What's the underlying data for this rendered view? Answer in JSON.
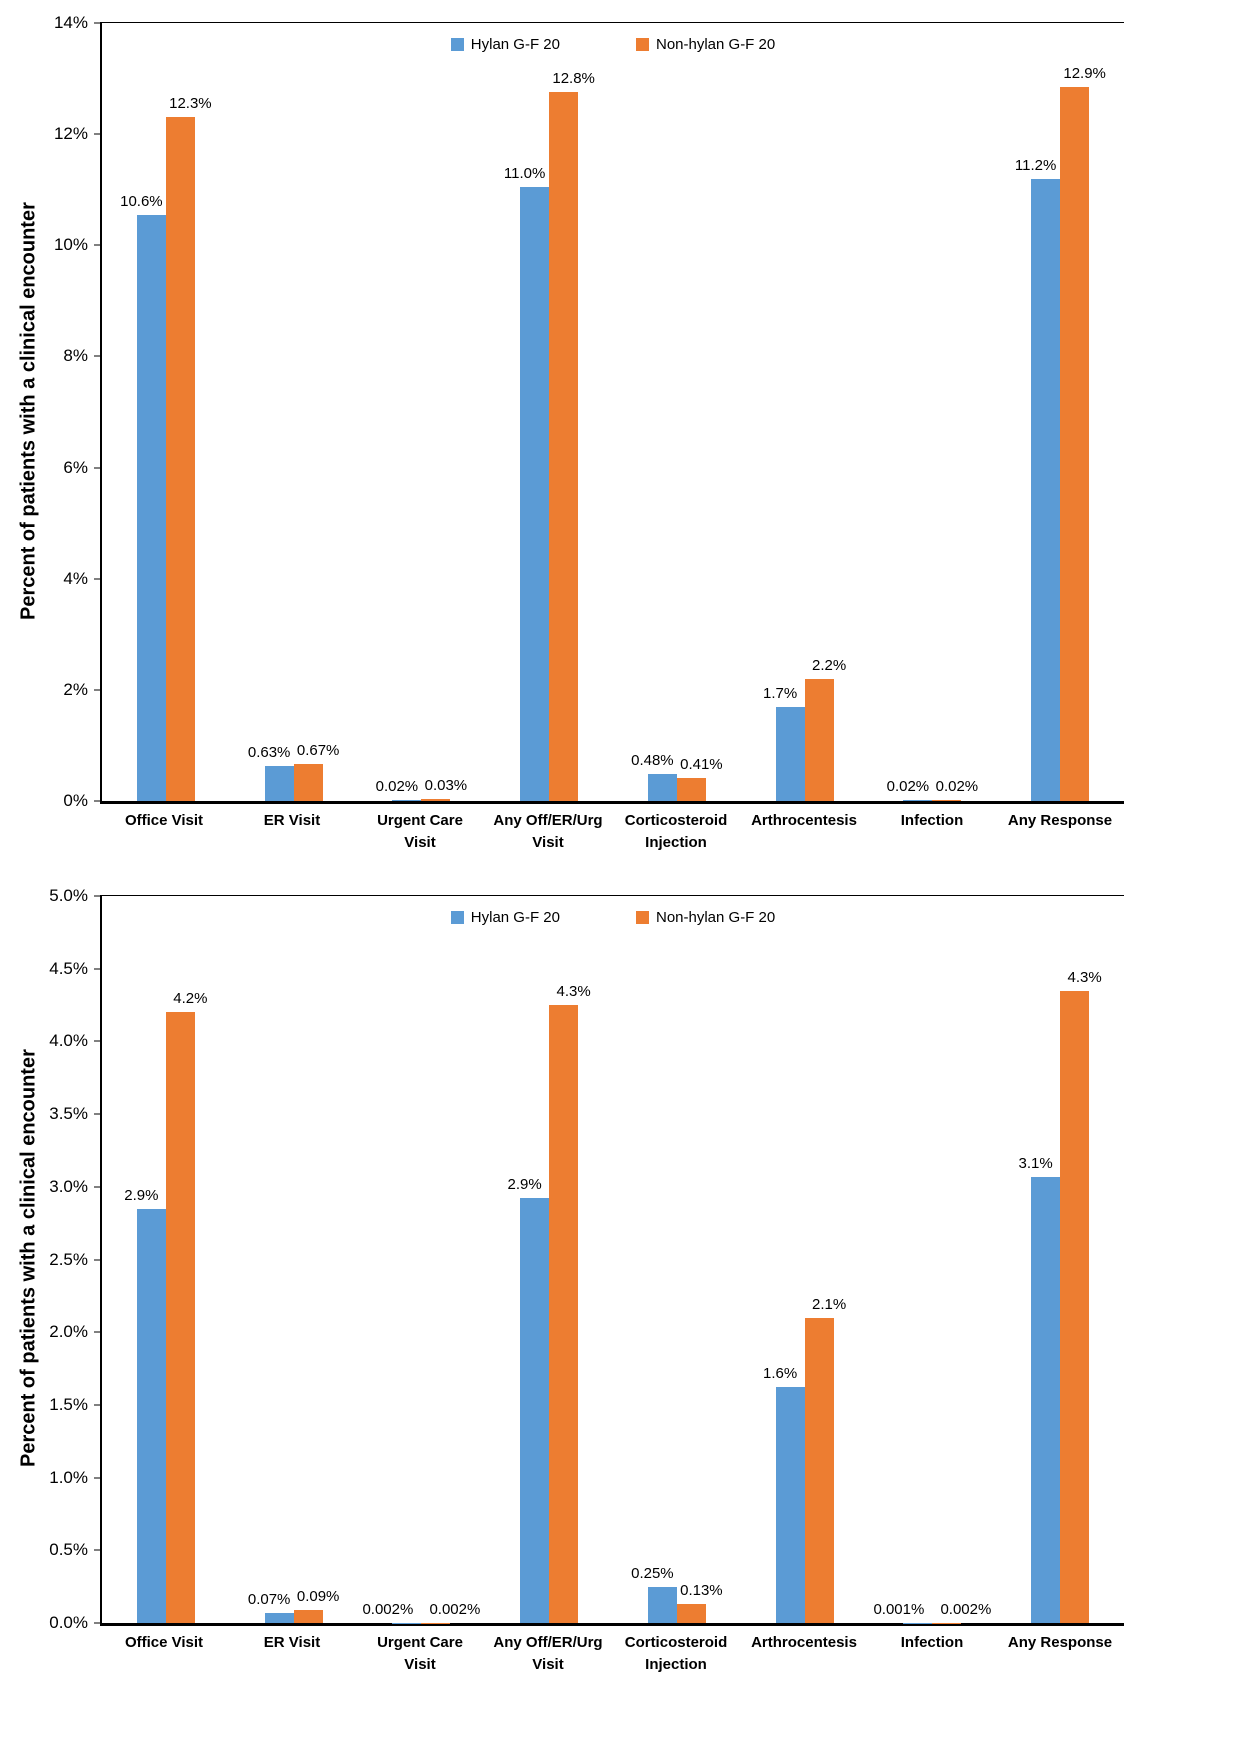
{
  "chart_data": [
    {
      "type": "bar",
      "panel": "top",
      "ylabel": "Percent of patients with a clinical encounter",
      "ylim": [
        0,
        14
      ],
      "ytick_labels": [
        "0%",
        "2%",
        "4%",
        "6%",
        "8%",
        "10%",
        "12%",
        "14%"
      ],
      "grid": false,
      "legend_position": "top-center",
      "categories": [
        "Office Visit",
        "ER Visit",
        "Urgent Care Visit",
        "Any Off/ER/Urg Visit",
        "Corticosteroid Injection",
        "Arthrocentesis",
        "Infection",
        "Any Response"
      ],
      "series": [
        {
          "name": "Hylan G-F 20",
          "color": "#5B9BD5",
          "values": [
            10.55,
            0.63,
            0.02,
            11.05,
            0.48,
            1.7,
            0.02,
            11.2
          ],
          "labels": [
            "10.6%",
            "0.63%",
            "0.02%",
            "11.0%",
            "0.48%",
            "1.7%",
            "0.02%",
            "11.2%"
          ]
        },
        {
          "name": "Non-hylan G-F 20",
          "color": "#ED7D31",
          "values": [
            12.3,
            0.67,
            0.03,
            12.75,
            0.41,
            2.2,
            0.02,
            12.85
          ],
          "labels": [
            "12.3%",
            "0.67%",
            "0.03%",
            "12.8%",
            "0.41%",
            "2.2%",
            "0.02%",
            "12.9%"
          ]
        }
      ]
    },
    {
      "type": "bar",
      "panel": "bottom",
      "ylabel": "Percent of patients with a clinical encounter",
      "ylim": [
        0,
        5
      ],
      "ytick_labels": [
        "0.0%",
        "0.5%",
        "1.0%",
        "1.5%",
        "2.0%",
        "2.5%",
        "3.0%",
        "3.5%",
        "4.0%",
        "4.5%",
        "5.0%"
      ],
      "grid": false,
      "legend_position": "top-center",
      "categories": [
        "Office Visit",
        "ER Visit",
        "Urgent Care Visit",
        "Any Off/ER/Urg Visit",
        "Corticosteroid Injection",
        "Arthrocentesis",
        "Infection",
        "Any Response"
      ],
      "series": [
        {
          "name": "Hylan G-F 20",
          "color": "#5B9BD5",
          "values": [
            2.85,
            0.07,
            0.002,
            2.92,
            0.25,
            1.62,
            0.001,
            3.07
          ],
          "labels": [
            "2.9%",
            "0.07%",
            "0.002%",
            "2.9%",
            "0.25%",
            "1.6%",
            "0.001%",
            "3.1%"
          ]
        },
        {
          "name": "Non-hylan G-F 20",
          "color": "#ED7D31",
          "values": [
            4.2,
            0.09,
            0.002,
            4.25,
            0.13,
            2.1,
            0.002,
            4.35
          ],
          "labels": [
            "4.2%",
            "0.09%",
            "0.002%",
            "4.3%",
            "0.13%",
            "2.1%",
            "0.002%",
            "4.3%"
          ]
        }
      ]
    }
  ]
}
